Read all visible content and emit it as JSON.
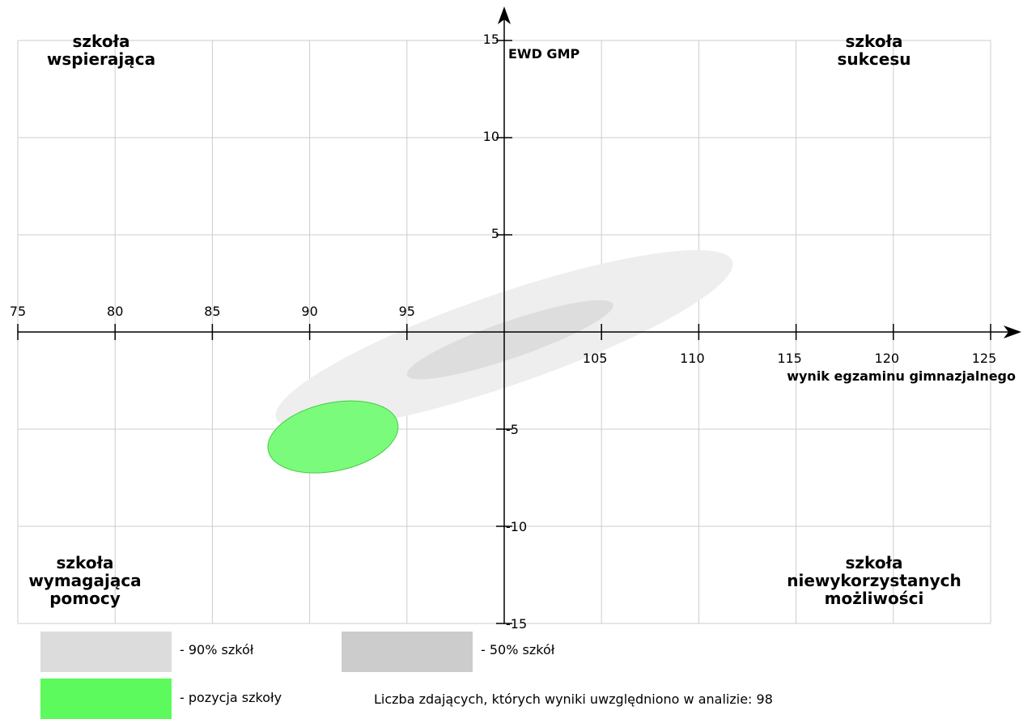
{
  "chart_data": {
    "type": "scatter",
    "x_axis": {
      "label": "wynik egzaminu gimnazjalnego",
      "min": 75,
      "max": 125,
      "ticks": [
        75,
        80,
        85,
        90,
        95,
        105,
        110,
        115,
        120,
        125
      ]
    },
    "y_axis": {
      "label": "EWD GMP",
      "min": -15,
      "max": 15,
      "ticks": [
        15,
        10,
        5,
        -5,
        -10,
        -15
      ]
    },
    "grid": true,
    "quadrants": {
      "top_left": [
        "szkoła",
        "wspierająca"
      ],
      "top_right": [
        "szkoła",
        "sukcesu"
      ],
      "bottom_left": [
        "szkoła",
        "wymagająca",
        "pomocy"
      ],
      "bottom_right": [
        "szkoła",
        "niewykorzystanych",
        "możliwości"
      ]
    },
    "ellipses": [
      {
        "name": "- 90% szkół",
        "cx": 100.0,
        "cy": -0.4,
        "rx": 12.4,
        "ry": 2.35,
        "angle_deg": 19,
        "color": "#eeeeee"
      },
      {
        "name": "- 50% szkół",
        "cx": 100.3,
        "cy": -0.4,
        "rx": 5.6,
        "ry": 0.95,
        "angle_deg": 19,
        "color": "#dddddd"
      },
      {
        "name": "- pozycja szkoły",
        "cx": 91.2,
        "cy": -5.4,
        "rx": 3.4,
        "ry": 1.75,
        "angle_deg": 12,
        "color": "#7bfb7b",
        "stroke": "#44cc44"
      }
    ]
  },
  "legend": {
    "p90": {
      "label": "- 90% szkół",
      "color": "#dcdcdc"
    },
    "p50": {
      "label": "- 50% szkół",
      "color": "#cccccc"
    },
    "school": {
      "label": "- pozycja szkoły",
      "color": "#5cfa5c"
    },
    "count_text": "Liczba zdających, których wyniki uwzględniono w analizie: 98"
  }
}
